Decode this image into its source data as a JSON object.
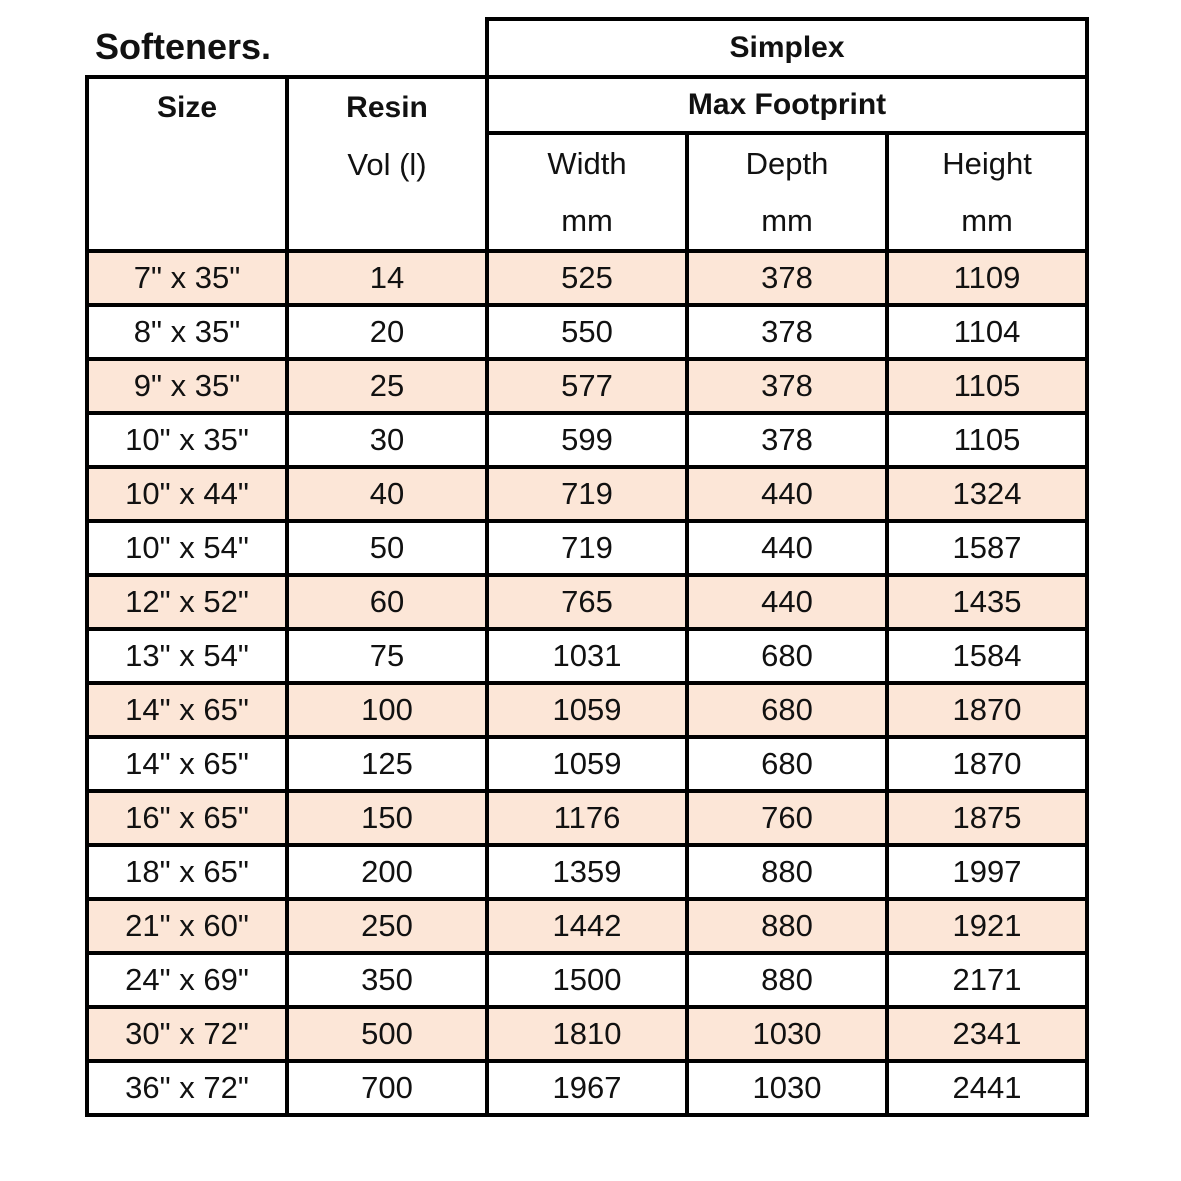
{
  "title": "Softeners.",
  "group_header": "Simplex",
  "columns": {
    "size": "Size",
    "resin_line1": "Resin",
    "resin_line2": "Vol (l)",
    "footprint": "Max Footprint",
    "width": "Width",
    "depth": "Depth",
    "height": "Height",
    "unit": "mm"
  },
  "shade_color": "#fce6d7",
  "rows": [
    [
      "7\" x 35\"",
      "14",
      "525",
      "378",
      "1109"
    ],
    [
      "8\" x 35\"",
      "20",
      "550",
      "378",
      "1104"
    ],
    [
      "9\" x 35\"",
      "25",
      "577",
      "378",
      "1105"
    ],
    [
      "10\" x 35\"",
      "30",
      "599",
      "378",
      "1105"
    ],
    [
      "10\" x 44\"",
      "40",
      "719",
      "440",
      "1324"
    ],
    [
      "10\" x 54\"",
      "50",
      "719",
      "440",
      "1587"
    ],
    [
      "12\" x 52\"",
      "60",
      "765",
      "440",
      "1435"
    ],
    [
      "13\" x 54\"",
      "75",
      "1031",
      "680",
      "1584"
    ],
    [
      "14\" x 65\"",
      "100",
      "1059",
      "680",
      "1870"
    ],
    [
      "14\" x 65\"",
      "125",
      "1059",
      "680",
      "1870"
    ],
    [
      "16\" x 65\"",
      "150",
      "1176",
      "760",
      "1875"
    ],
    [
      "18\" x 65\"",
      "200",
      "1359",
      "880",
      "1997"
    ],
    [
      "21\" x 60\"",
      "250",
      "1442",
      "880",
      "1921"
    ],
    [
      "24\" x 69\"",
      "350",
      "1500",
      "880",
      "2171"
    ],
    [
      "30\" x 72\"",
      "500",
      "1810",
      "1030",
      "2341"
    ],
    [
      "36\" x 72\"",
      "700",
      "1967",
      "1030",
      "2441"
    ]
  ]
}
